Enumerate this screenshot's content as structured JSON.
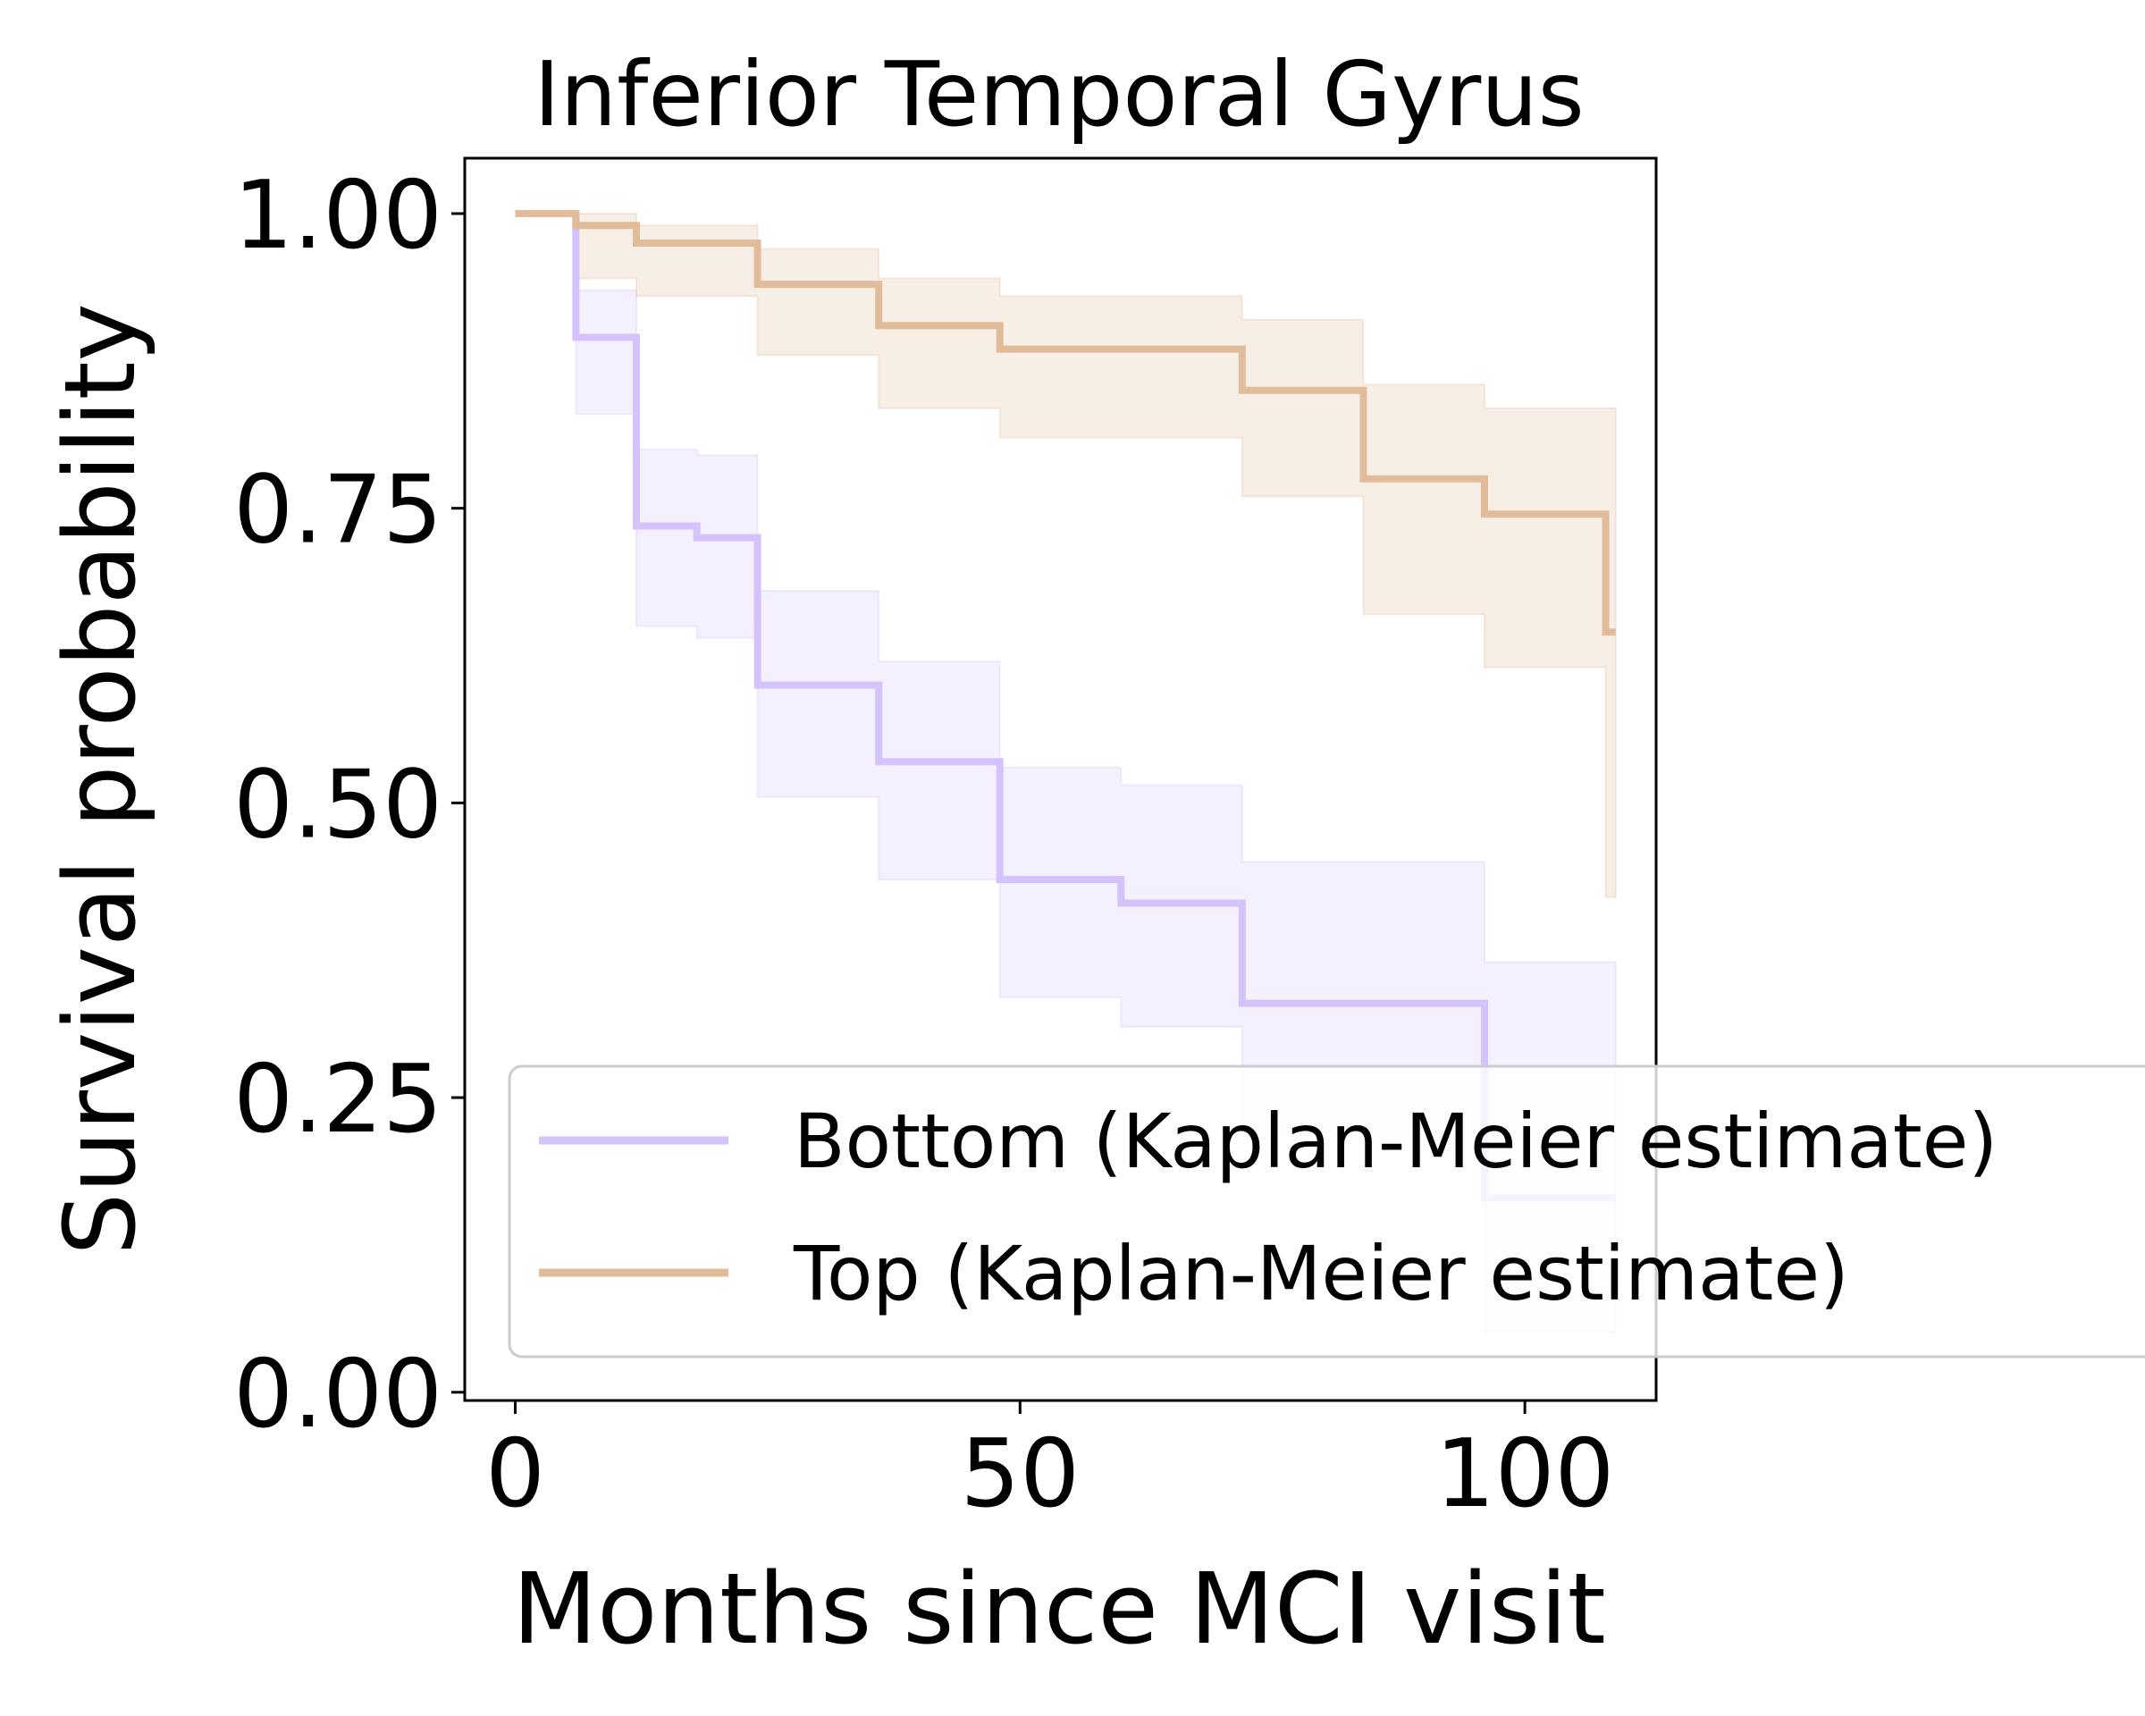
{
  "chart_data": {
    "type": "line",
    "subtype": "step",
    "title": "Inferior Temporal Gyrus",
    "xlabel": "Months since MCI visit",
    "ylabel": "Survival probability",
    "xlim": [
      -5,
      113
    ],
    "ylim": [
      -0.007,
      1.047
    ],
    "xticks": [
      {
        "value": 0,
        "label": "0"
      },
      {
        "value": 50,
        "label": "50"
      },
      {
        "value": 100,
        "label": "100"
      }
    ],
    "yticks": [
      {
        "value": 0.0,
        "label": "0.00"
      },
      {
        "value": 0.25,
        "label": "0.25"
      },
      {
        "value": 0.5,
        "label": "0.50"
      },
      {
        "value": 0.75,
        "label": "0.75"
      },
      {
        "value": 1.0,
        "label": "1.00"
      }
    ],
    "grid": false,
    "legend": {
      "position": "lower-right"
    },
    "series": [
      {
        "name": "Bottom (Kaplan-Meier estimate)",
        "color": "#d4c2fb",
        "times": [
          0,
          6,
          12,
          18,
          24,
          36,
          48,
          60,
          72,
          96,
          108
        ],
        "survival": [
          1.0,
          0.895,
          0.735,
          0.725,
          0.6,
          0.535,
          0.435,
          0.415,
          0.33,
          0.165,
          0.165
        ],
        "ci_lower": [
          1.0,
          0.83,
          0.65,
          0.64,
          0.505,
          0.435,
          0.335,
          0.31,
          0.22,
          0.05,
          0.05
        ],
        "ci_upper": [
          1.0,
          0.935,
          0.8,
          0.795,
          0.68,
          0.62,
          0.53,
          0.515,
          0.45,
          0.365,
          0.365
        ]
      },
      {
        "name": "Top (Kaplan-Meier estimate)",
        "color": "#e0bc9a",
        "times": [
          0,
          6,
          12,
          24,
          36,
          48,
          72,
          84,
          96,
          108
        ],
        "survival": [
          1.0,
          0.99,
          0.975,
          0.94,
          0.905,
          0.885,
          0.85,
          0.775,
          0.745,
          0.645
        ],
        "ci_lower": [
          1.0,
          0.945,
          0.93,
          0.88,
          0.835,
          0.81,
          0.76,
          0.66,
          0.615,
          0.42
        ],
        "ci_upper": [
          1.0,
          1.0,
          0.99,
          0.97,
          0.945,
          0.93,
          0.91,
          0.855,
          0.835,
          0.835
        ]
      }
    ]
  }
}
